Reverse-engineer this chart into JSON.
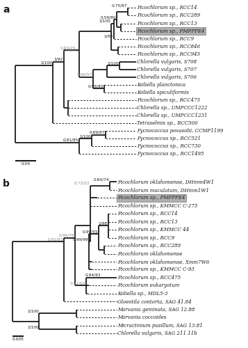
{
  "panel_a": {
    "taxa": [
      "Picochlorum sp., RCC14",
      "Picochlorum sp., RCC289",
      "Picochlorum sp., RCC13",
      "Picochlorum sp., PMFPPE4",
      "Picochlorum sp., RCC9",
      "Picochlorum sp., RCC846",
      "Picochlorum sp., RCC945",
      "Chlorella vulgaris, S708",
      "Chlorella vulgaris, S707",
      "Chlorella vulgaris, S706",
      "Koliella planctonica",
      "Koliella spiculiformis",
      "Picochlorum sp., RCC475",
      "Chlorella sp., UMPCCC1222",
      "Chlorella sp., UMPCCC1231",
      "Tetraselmis sp., RCC500",
      "Pycnococcus povasolii, CCMP1199",
      "Pycnococcus sp., RCC521",
      "Pycnococcus sp., RCC730",
      "Pycnococcus sp., RCC1495"
    ],
    "highlighted_idx": 3,
    "scale_label": "0.04"
  },
  "panel_b": {
    "taxa": [
      "Picochlorum oklahomense, DHmm4W1",
      "Picochlorum maculatum, DHmm1W1",
      "Picochlorum sp., PMFPPE4",
      "Picochlorum sp., KMMCC C-275",
      "Picochlorum sp., RCC14",
      "Picochlorum sp., RCC13",
      "Picochlorum sp., KMMCC 44",
      "Picochlorum sp., RCC9",
      "Picochlorum sp., RCC289",
      "Picochlorum oklahomense",
      "Picochlorum oklahomense, Xmm7W6",
      "Picochlorum sp., KMMCC C-93",
      "Picochlorum sp., RCC475",
      "Picochlorum eukaryotum",
      "Koliella sp., MDL5-3",
      "Gloeotila contorta, SAG 41.84",
      "Marvania geminata, SAG 12.88",
      "Marvania coccoides",
      "Micractinium pusillum, SAG 13.81",
      "Chlorella vulgaris, SAG 211.11b"
    ],
    "highlighted_idx": 2,
    "scale_label": "0.005"
  },
  "bg_color": "#ffffff",
  "line_color": "#1a1a1a",
  "text_color": "#1a1a1a",
  "highlight_color": "#b0b0b0",
  "font_size_taxa": 5.0,
  "font_size_node": 4.2,
  "font_size_panel": 10
}
